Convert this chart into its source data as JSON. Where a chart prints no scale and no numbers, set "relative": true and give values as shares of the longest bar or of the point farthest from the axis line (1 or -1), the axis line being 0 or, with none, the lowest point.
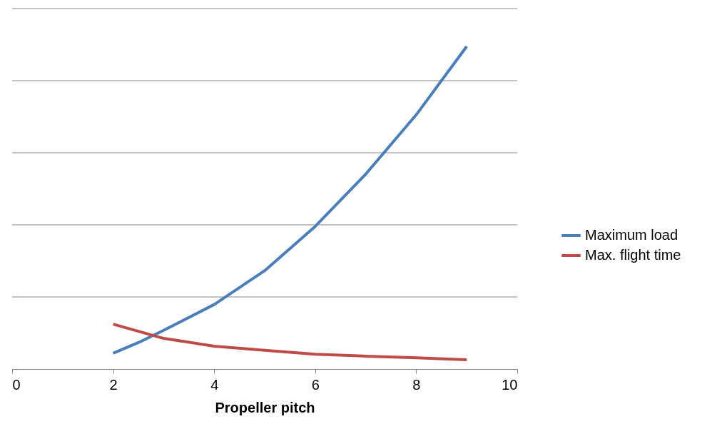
{
  "chart_data": {
    "type": "line",
    "xlabel": "Propeller pitch",
    "relative": true,
    "xlim": [
      0,
      10
    ],
    "xticks": [
      0,
      2,
      4,
      6,
      8,
      10
    ],
    "grid": "y",
    "legend": "right",
    "line_style": "solid",
    "marker": "none",
    "series": [
      {
        "name": "Maximum load",
        "color": "#4a7ebb",
        "x": [
          2,
          2.5,
          3,
          4,
          5,
          6,
          7,
          8,
          9
        ],
        "values": [
          0.049,
          0.082,
          0.12,
          0.2,
          0.305,
          0.442,
          0.604,
          0.788,
          1
        ]
      },
      {
        "name": "Max. flight time",
        "color": "#be4b48",
        "x": [
          2,
          2.5,
          3,
          4,
          5,
          6,
          7,
          8,
          9
        ],
        "values": [
          0.139,
          0.117,
          0.095,
          0.071,
          0.058,
          0.046,
          0.04,
          0.035,
          0.029
        ]
      }
    ]
  }
}
